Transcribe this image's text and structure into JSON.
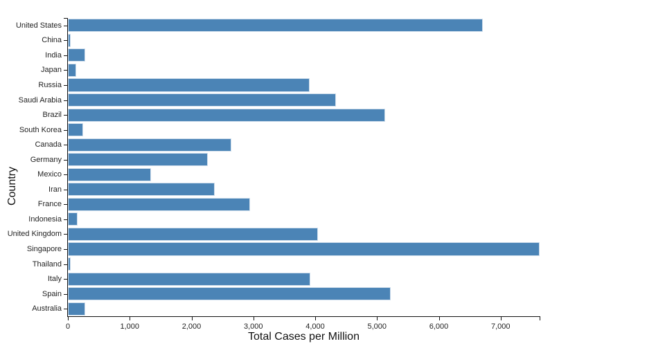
{
  "chart_data": {
    "type": "bar",
    "orientation": "horizontal",
    "title": "",
    "xlabel": "Total Cases per Million",
    "ylabel": "Country",
    "xlim": [
      0,
      7630
    ],
    "x_ticks": [
      0,
      1000,
      2000,
      3000,
      4000,
      5000,
      6000,
      7000
    ],
    "x_tick_labels": [
      "0",
      "1,000",
      "2,000",
      "3,000",
      "4,000",
      "5,000",
      "6,000",
      "7,000"
    ],
    "categories": [
      "United States",
      "China",
      "India",
      "Japan",
      "Russia",
      "Saudi Arabia",
      "Brazil",
      "South Korea",
      "Canada",
      "Germany",
      "Mexico",
      "Iran",
      "France",
      "Indonesia",
      "United Kingdom",
      "Singapore",
      "Thailand",
      "Italy",
      "Spain",
      "Australia"
    ],
    "values": [
      6710,
      50,
      280,
      135,
      3915,
      4335,
      5130,
      245,
      2645,
      2260,
      1340,
      2370,
      2950,
      160,
      4040,
      7625,
      42,
      3925,
      5225,
      280
    ],
    "legend": null,
    "grid": false
  },
  "colors": {
    "bar_fill": "#4b84b6",
    "bar_edge": "#cfdeec",
    "axis": "#111111",
    "text": "#1f1f1f"
  }
}
